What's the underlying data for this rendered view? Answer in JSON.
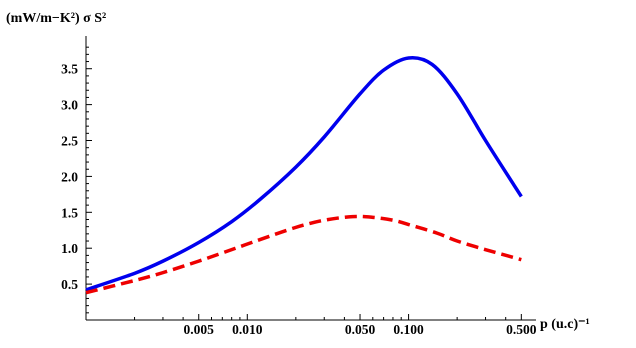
{
  "chart_data": {
    "type": "line",
    "x_scale": "log",
    "xlabel": "p (u.c)⁻¹",
    "ylabel": "(mW/m−K²) σ S²",
    "xlim": [
      0.001,
      0.55
    ],
    "ylim": [
      0.0,
      3.9
    ],
    "x_ticks": [
      {
        "value": 0.005,
        "label": "0.005"
      },
      {
        "value": 0.01,
        "label": "0.010"
      },
      {
        "value": 0.05,
        "label": "0.050"
      },
      {
        "value": 0.1,
        "label": "0.100"
      },
      {
        "value": 0.5,
        "label": "0.500"
      }
    ],
    "x_minor_ticks": [
      0.002,
      0.003,
      0.004,
      0.006,
      0.007,
      0.008,
      0.009,
      0.02,
      0.03,
      0.04,
      0.06,
      0.07,
      0.08,
      0.09,
      0.2,
      0.3,
      0.4
    ],
    "y_ticks": [
      {
        "value": 0.5,
        "label": "0.5"
      },
      {
        "value": 1.0,
        "label": "1.0"
      },
      {
        "value": 1.5,
        "label": "1.5"
      },
      {
        "value": 2.0,
        "label": "2.0"
      },
      {
        "value": 2.5,
        "label": "2.5"
      },
      {
        "value": 3.0,
        "label": "3.0"
      },
      {
        "value": 3.5,
        "label": "3.5"
      }
    ],
    "y_minor_ticks": [
      0.1,
      0.2,
      0.3,
      0.4,
      0.6,
      0.7,
      0.8,
      0.9,
      1.1,
      1.2,
      1.3,
      1.4,
      1.6,
      1.7,
      1.8,
      1.9,
      2.1,
      2.2,
      2.3,
      2.4,
      2.6,
      2.7,
      2.8,
      2.9,
      3.1,
      3.2,
      3.3,
      3.4,
      3.6,
      3.7,
      3.8
    ],
    "grid": false,
    "series": [
      {
        "color": "#0000ee",
        "dash": "solid",
        "x": [
          0.001,
          0.002,
          0.003,
          0.005,
          0.008,
          0.012,
          0.02,
          0.03,
          0.05,
          0.07,
          0.1,
          0.14,
          0.2,
          0.3,
          0.45,
          0.5
        ],
        "y": [
          0.42,
          0.65,
          0.82,
          1.08,
          1.37,
          1.68,
          2.13,
          2.55,
          3.15,
          3.48,
          3.65,
          3.56,
          3.15,
          2.5,
          1.88,
          1.72
        ]
      },
      {
        "color": "#ee0000",
        "dash": "dashed",
        "x": [
          0.001,
          0.002,
          0.003,
          0.005,
          0.008,
          0.012,
          0.02,
          0.03,
          0.045,
          0.06,
          0.08,
          0.1,
          0.15,
          0.2,
          0.3,
          0.45,
          0.5
        ],
        "y": [
          0.38,
          0.55,
          0.66,
          0.82,
          0.98,
          1.12,
          1.29,
          1.39,
          1.44,
          1.43,
          1.39,
          1.33,
          1.21,
          1.1,
          0.98,
          0.87,
          0.84
        ]
      }
    ]
  }
}
